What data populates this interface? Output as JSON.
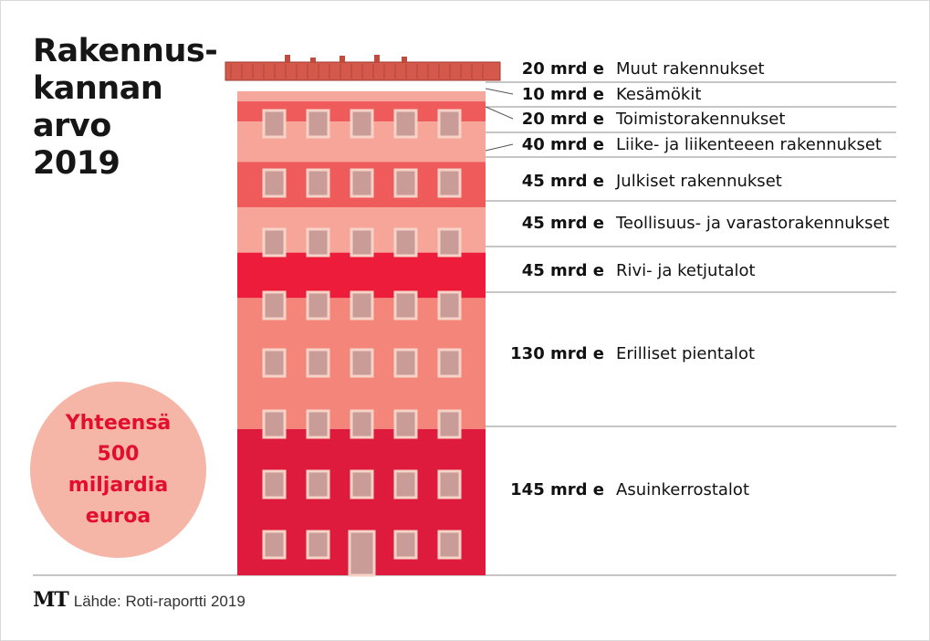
{
  "title_lines": [
    "Rakennus-",
    "kannan",
    "arvo",
    "2019"
  ],
  "total": {
    "lines": [
      "Yhteensä",
      "500",
      "miljardia",
      "euroa"
    ]
  },
  "footer": {
    "logo": "MT",
    "source": "Lähde: Roti-raportti 2019"
  },
  "chart_data": {
    "type": "bar",
    "unit": "mrd e",
    "categories": [
      "Muut rakennukset",
      "Kesämökit",
      "Toimistorakennukset",
      "Liike- ja liikenteeen rakennukset",
      "Julkiset rakennukset",
      "Teollisuus- ja varastorakennukset",
      "Rivi- ja ketjutalot",
      "Erilliset pientalot",
      "Asuinkerrostalot"
    ],
    "value_labels": [
      "20 mrd e",
      "10 mrd e",
      "20 mrd e",
      "40 mrd e",
      "45 mrd e",
      "45 mrd e",
      "45 mrd e",
      "130 mrd e",
      "145 mrd e"
    ],
    "values": [
      20,
      10,
      20,
      40,
      45,
      45,
      45,
      130,
      145
    ],
    "total": 500,
    "colors": [
      "#d4594a",
      "#f5a79c",
      "#ef5b5b",
      "#f6a598",
      "#ef5b5b",
      "#f6a598",
      "#ec1c3a",
      "#f4857b",
      "#de1b3c"
    ]
  }
}
